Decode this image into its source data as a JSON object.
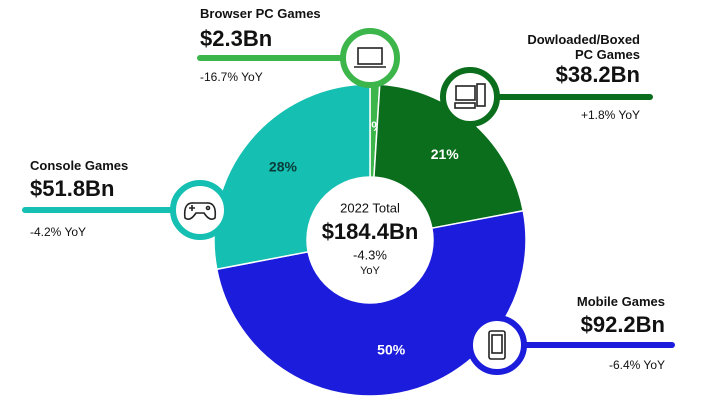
{
  "chart_data": {
    "type": "pie",
    "categories": [
      "Browser PC Games",
      "Dowloaded/Boxed PC Games",
      "Mobile Games",
      "Console Games"
    ],
    "values": [
      1,
      21,
      50,
      28
    ],
    "value_labels": [
      "1%",
      "21%",
      "50%",
      "28%"
    ],
    "revenue_labels": [
      "$2.3Bn",
      "$38.2Bn",
      "$92.2Bn",
      "$51.8Bn"
    ],
    "yoy_labels": [
      "-16.7% YoY",
      "+1.8% YoY",
      "-6.4% YoY",
      "-4.2% YoY"
    ],
    "colors": [
      "#3cb54a",
      "#0b6e1c",
      "#1c1cdc",
      "#15bfb1"
    ],
    "center": {
      "title": "2022 Total",
      "value": "$184.4Bn",
      "change": "-4.3%",
      "change_label": "YoY"
    }
  }
}
